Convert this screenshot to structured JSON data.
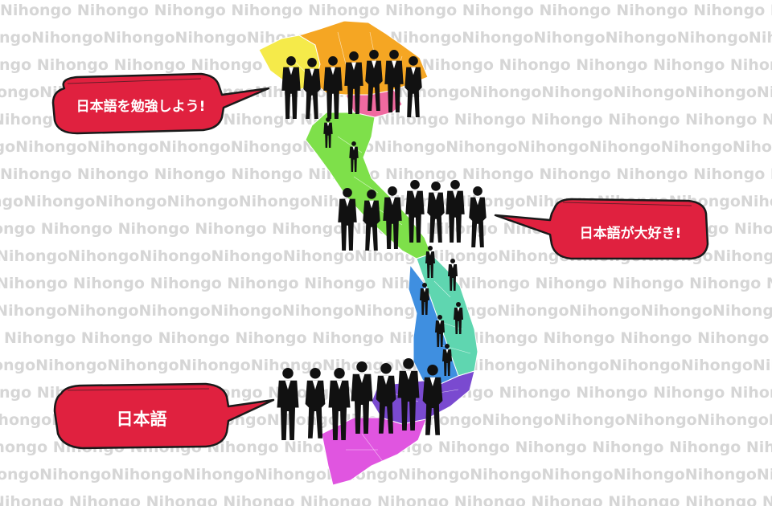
{
  "watermark": {
    "word": "Nihongo",
    "color": "#d6d6d6"
  },
  "bubbles": [
    {
      "text": "日本語を勉強しよう!",
      "tail": "right"
    },
    {
      "text": "日本語が大好き!",
      "tail": "left"
    },
    {
      "text": "日本語",
      "tail": "right"
    }
  ],
  "colors": {
    "bubble_fill": "#e0213f",
    "bubble_outline": "#1a1a1a",
    "silhouette": "#111111",
    "map_regions": [
      "#f5ea4a",
      "#f5a623",
      "#f06aa0",
      "#7ee04a",
      "#5fd6b0",
      "#3f8fe0",
      "#7a4ad0",
      "#e055e0"
    ]
  },
  "figures": {
    "row_count": 4,
    "description_icon": "businessperson-silhouette"
  }
}
